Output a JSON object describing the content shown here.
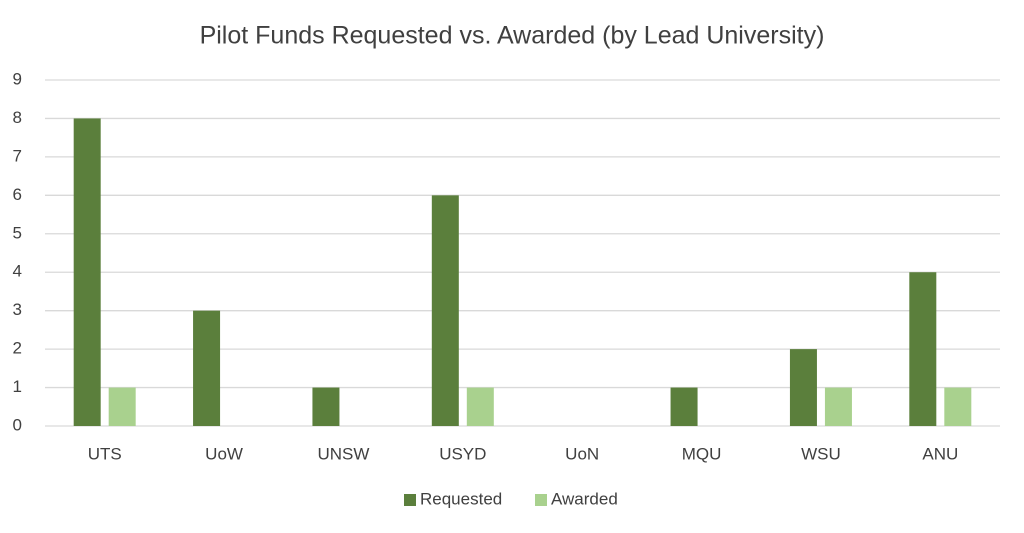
{
  "chart_data": {
    "type": "bar",
    "title": "Pilot Funds Requested vs. Awarded (by Lead University)",
    "categories": [
      "UTS",
      "UoW",
      "UNSW",
      "USYD",
      "UoN",
      "MQU",
      "WSU",
      "ANU"
    ],
    "series": [
      {
        "name": "Requested",
        "color": "#5b7f3c",
        "values": [
          8,
          3,
          1,
          6,
          0,
          1,
          2,
          4
        ]
      },
      {
        "name": "Awarded",
        "color": "#a9d18e",
        "values": [
          1,
          0,
          0,
          1,
          0,
          0,
          1,
          1
        ]
      }
    ],
    "ylim": [
      0,
      9
    ],
    "yticks": [
      0,
      1,
      2,
      3,
      4,
      5,
      6,
      7,
      8,
      9
    ],
    "grid": true,
    "legend": "bottom"
  }
}
